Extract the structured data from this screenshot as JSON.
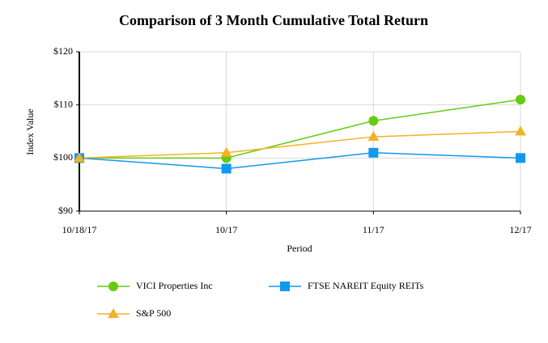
{
  "chart_data": {
    "type": "line",
    "title": "Comparison of 3 Month Cumulative Total Return",
    "x_label": "Period",
    "y_label": "Index Value",
    "categories": [
      "10/18/17",
      "10/17",
      "11/17",
      "12/17"
    ],
    "series": [
      {
        "name": "VICI Properties Inc",
        "color": "#66cc11",
        "marker": "circle",
        "values": [
          100,
          100,
          107,
          111
        ]
      },
      {
        "name": "FTSE NAREIT Equity REITs",
        "color": "#1199ee",
        "marker": "square",
        "values": [
          100,
          98,
          101,
          100
        ]
      },
      {
        "name": "S&P 500",
        "color": "#f2b227",
        "marker": "triangle",
        "values": [
          100,
          101,
          104,
          105
        ]
      }
    ],
    "ylim": [
      90,
      120
    ],
    "yticks": [
      {
        "value": 90,
        "label": "$90"
      },
      {
        "value": 100,
        "label": "$100"
      },
      {
        "value": 110,
        "label": "$110"
      },
      {
        "value": 120,
        "label": "$120"
      }
    ],
    "grid": true
  }
}
